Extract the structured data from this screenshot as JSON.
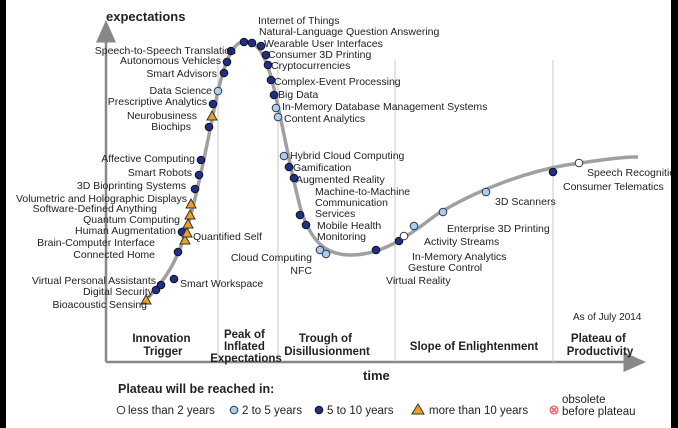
{
  "axis": {
    "y_label": "expectations",
    "x_label": "time"
  },
  "as_of": "As of July 2014",
  "phases": [
    {
      "line1": "Innovation",
      "line2": "Trigger",
      "line3": ""
    },
    {
      "line1": "Peak of",
      "line2": "Inflated",
      "line3": "Expectations"
    },
    {
      "line1": "Trough of",
      "line2": "Disillusionment",
      "line3": ""
    },
    {
      "line1": "Slope of Enlightenment",
      "line2": "",
      "line3": ""
    },
    {
      "line1": "Plateau of",
      "line2": "Productivity",
      "line3": ""
    }
  ],
  "legend": {
    "title": "Plateau will be reached in:",
    "items": [
      {
        "key": "lt2",
        "label": "less than 2 years"
      },
      {
        "key": "y2to5",
        "label": "2 to 5 years"
      },
      {
        "key": "y5to10",
        "label": "5 to 10 years"
      },
      {
        "key": "gt10",
        "label": "more than 10 years"
      },
      {
        "key": "obsolete",
        "label": "obsolete",
        "label2": "before plateau"
      }
    ]
  },
  "colors": {
    "curve": "#a0a0a0",
    "lt2": "#ffffff",
    "y2to5": "#a6cff0",
    "y5to10": "#1f2f8a",
    "gt10": "#f0a020",
    "obsolete": "#e05050"
  },
  "technologies": [
    {
      "name": "Bioacoustic Sensing",
      "cat": "gt10"
    },
    {
      "name": "Digital Security",
      "cat": "y5to10"
    },
    {
      "name": "Virtual Personal Assistants",
      "cat": "y5to10"
    },
    {
      "name": "Smart Workspace",
      "cat": "y5to10"
    },
    {
      "name": "Connected Home",
      "cat": "y5to10"
    },
    {
      "name": "Quantified Self",
      "cat": "y5to10"
    },
    {
      "name": "Brain-Computer Interface",
      "cat": "gt10"
    },
    {
      "name": "Human Augmentation",
      "cat": "gt10"
    },
    {
      "name": "Quantum Computing",
      "cat": "gt10"
    },
    {
      "name": "Software-Defined Anything",
      "cat": "gt10"
    },
    {
      "name": "Volumetric and Holographic Displays",
      "cat": "gt10"
    },
    {
      "name": "3D Bioprinting Systems",
      "cat": "y5to10"
    },
    {
      "name": "Smart Robots",
      "cat": "y5to10"
    },
    {
      "name": "Affective  Computing",
      "cat": "y5to10"
    },
    {
      "name": "Biochips",
      "cat": "y5to10"
    },
    {
      "name": "Neurobusiness",
      "cat": "gt10"
    },
    {
      "name": "Prescriptive Analytics",
      "cat": "y5to10"
    },
    {
      "name": "Data Science",
      "cat": "y2to5"
    },
    {
      "name": "Smart Advisors",
      "cat": "y5to10"
    },
    {
      "name": "Autonomous Vehicles",
      "cat": "y5to10"
    },
    {
      "name": "Speech-to-Speech Translation",
      "cat": "y5to10"
    },
    {
      "name": "Internet of Things",
      "cat": "y5to10"
    },
    {
      "name": "Natural-Language Question Answering",
      "cat": "y5to10"
    },
    {
      "name": "Wearable User Interfaces",
      "cat": "y5to10"
    },
    {
      "name": "Consumer 3D Printing",
      "cat": "y5to10"
    },
    {
      "name": "Cryptocurrencies",
      "cat": "y5to10"
    },
    {
      "name": "Complex-Event Processing",
      "cat": "y5to10"
    },
    {
      "name": "Big Data",
      "cat": "y5to10"
    },
    {
      "name": "In-Memory Database Management Systems",
      "cat": "y2to5"
    },
    {
      "name": "Content Analytics",
      "cat": "y2to5"
    },
    {
      "name": "Hybrid Cloud Computing",
      "cat": "y2to5"
    },
    {
      "name": "Gamification",
      "cat": "y5to10"
    },
    {
      "name": "Augmented Reality",
      "cat": "y5to10"
    },
    {
      "name": "Machine-to-Machine",
      "name2": "Communication",
      "name3": "Services",
      "cat": "y5to10"
    },
    {
      "name": "Mobile Health",
      "name2": "Monitoring",
      "cat": "y5to10"
    },
    {
      "name": "Cloud Computing",
      "cat": "y2to5"
    },
    {
      "name": "NFC",
      "cat": "y2to5"
    },
    {
      "name": "Virtual Reality",
      "cat": "y5to10"
    },
    {
      "name": "Gesture Control",
      "cat": "y5to10"
    },
    {
      "name": "In-Memory Analytics",
      "cat": "lt2"
    },
    {
      "name": "Activity  Streams",
      "cat": "y2to5"
    },
    {
      "name": "Enterprise 3D Printing",
      "cat": "y2to5"
    },
    {
      "name": "3D Scanners",
      "cat": "y2to5"
    },
    {
      "name": "Consumer Telematics",
      "cat": "y5to10"
    },
    {
      "name": "Speech Recognition",
      "cat": "lt2"
    }
  ]
}
